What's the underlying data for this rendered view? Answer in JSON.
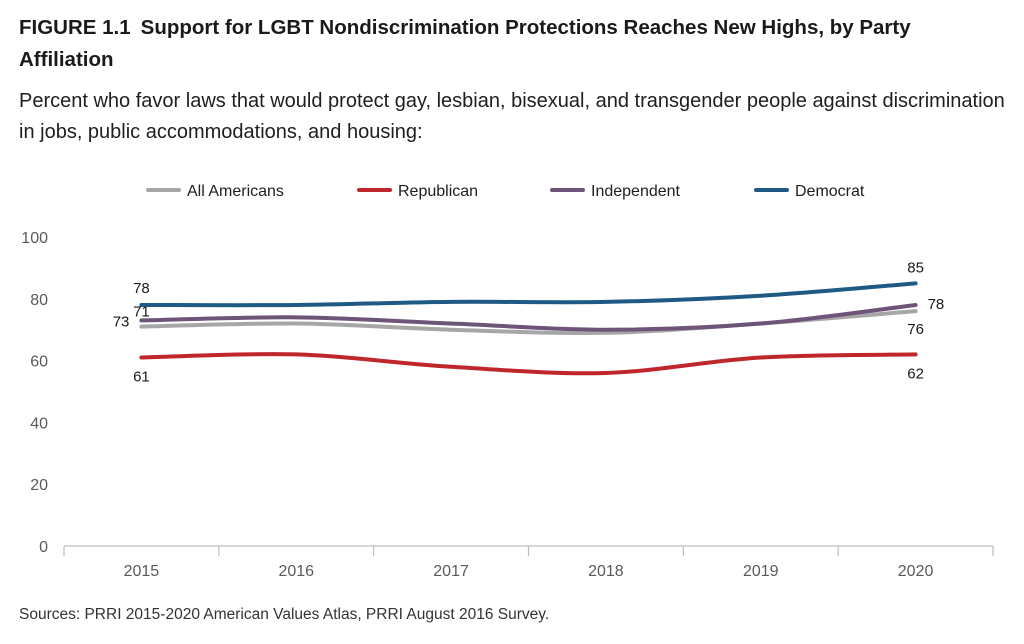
{
  "figure": {
    "label": "FIGURE 1.1",
    "title": "Support for LGBT Nondiscrimination Protections Reaches New Highs, by Party Affiliation",
    "subtitle": "Percent who favor laws that would protect gay, lesbian, bisexual, and transgender people against discrimination in jobs, public accommodations, and housing:",
    "source": "Sources: PRRI 2015-2020 American Values Atlas, PRRI August 2016 Survey."
  },
  "chart_data": {
    "type": "line",
    "title": "Support for LGBT Nondiscrimination Protections Reaches New Highs, by Party Affiliation",
    "xlabel": "",
    "ylabel": "",
    "x": [
      "2015",
      "2016",
      "2017",
      "2018",
      "2019",
      "2020"
    ],
    "ylim": [
      0,
      100
    ],
    "yticks": [
      0,
      20,
      40,
      60,
      80,
      100
    ],
    "grid": false,
    "legend_position": "top",
    "series": [
      {
        "name": "All Americans",
        "color": "#a6a6a6",
        "values": [
          71,
          72,
          70,
          69,
          72,
          76
        ],
        "labels": {
          "0": "71",
          "5": "76"
        }
      },
      {
        "name": "Republican",
        "color": "#c0272d",
        "values": [
          61,
          62,
          58,
          56,
          61,
          62
        ],
        "labels": {
          "0": "61",
          "5": "62"
        }
      },
      {
        "name": "Independent",
        "color": "#6d5478",
        "values": [
          73,
          74,
          72,
          70,
          72,
          78
        ],
        "labels": {
          "0": "73",
          "5": "78"
        }
      },
      {
        "name": "Democrat",
        "color": "#1f5a85",
        "values": [
          78,
          78,
          79,
          79,
          81,
          85
        ],
        "labels": {
          "0": "78",
          "5": "85"
        }
      }
    ]
  }
}
